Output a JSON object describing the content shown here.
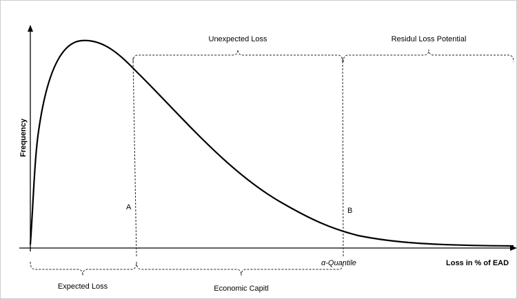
{
  "labels": {
    "unexpected_loss": "Unexpected Loss",
    "residual_loss": "Residul Loss Potential",
    "y_axis": "Frequency",
    "point_a": "A",
    "point_b": "B",
    "quantile": "α-Quantile",
    "x_axis": "Loss in % of EAD",
    "expected_loss": "Expected Loss",
    "economic_capital": "Economic Capitl"
  }
}
